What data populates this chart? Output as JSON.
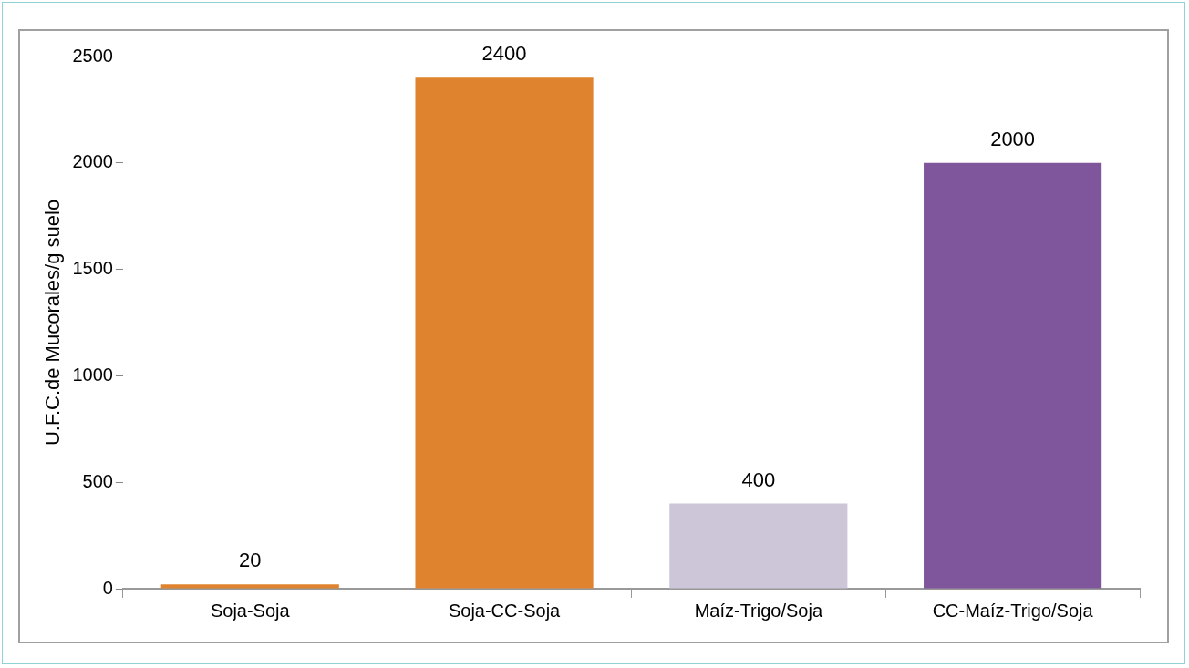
{
  "chart_data": {
    "type": "bar",
    "ylabel": "U.F.C.de Mucorales/g suelo",
    "categories": [
      "Soja-Soja",
      "Soja-CC-Soja",
      "Maíz-Trigo/Soja",
      "CC-Maíz-Trigo/Soja"
    ],
    "values": [
      20,
      2400,
      400,
      2000
    ],
    "colors": [
      "#e0832f",
      "#e0832f",
      "#cdc6d8",
      "#7f559c"
    ],
    "ylim": [
      0,
      2500
    ],
    "yticks": [
      0,
      500,
      1000,
      1500,
      2000,
      2500
    ],
    "grid": false,
    "legend": false,
    "data_labels": true
  }
}
